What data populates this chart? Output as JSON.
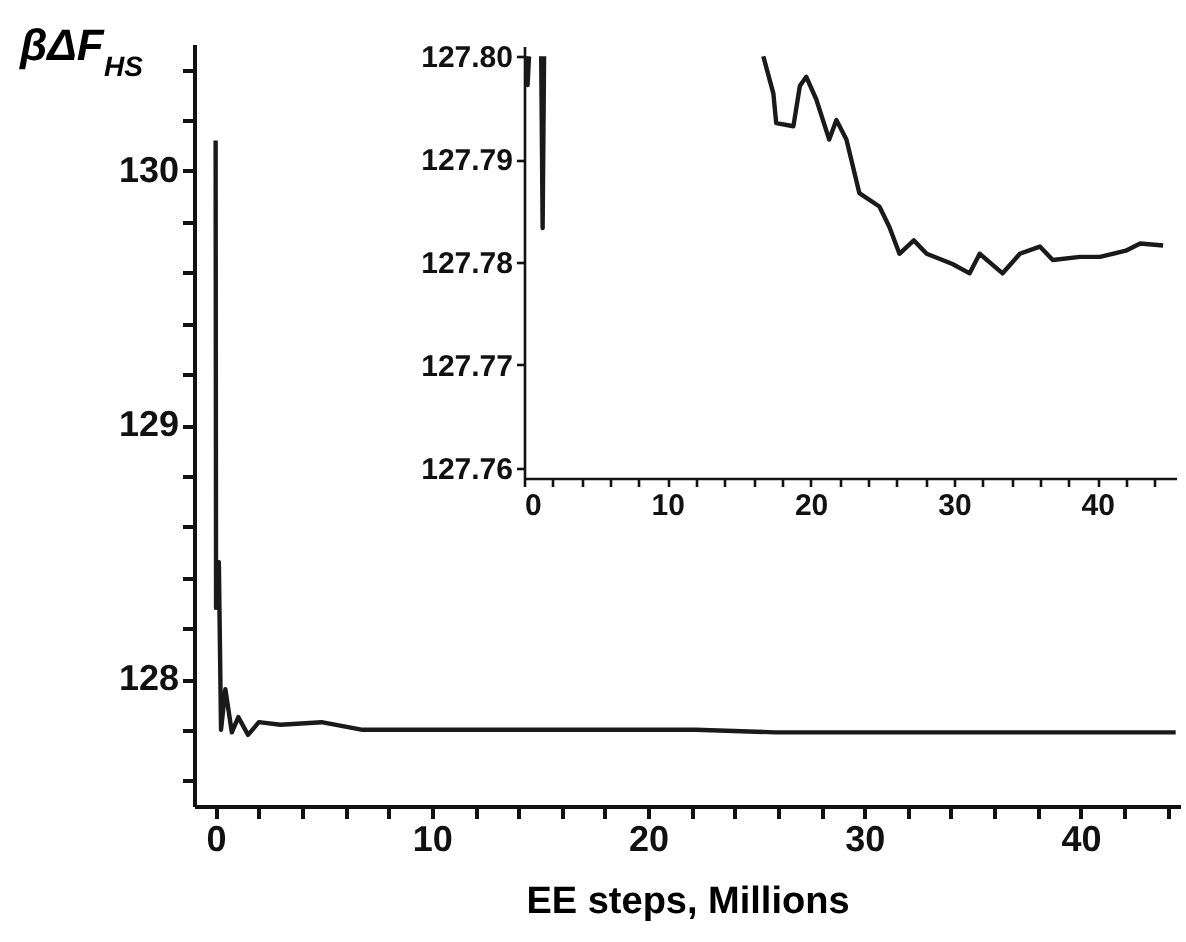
{
  "chart_data": [
    {
      "type": "line",
      "xlabel": "EE steps, Millions",
      "ylabel": "βΔF$_{HS}$",
      "xlim": [
        -1,
        44.6
      ],
      "ylim": [
        127.5,
        130.5
      ],
      "xticks": [
        0,
        {
          "value": 2,
          "label": null
        },
        {
          "value": 4,
          "label": null
        },
        {
          "value": 6,
          "label": null
        },
        {
          "value": 8,
          "label": null
        },
        10,
        {
          "value": 12,
          "label": null
        },
        {
          "value": 14,
          "label": null
        },
        {
          "value": 16,
          "label": null
        },
        {
          "value": 18,
          "label": null
        },
        20,
        {
          "value": 22,
          "label": null
        },
        {
          "value": 24,
          "label": null
        },
        {
          "value": 26,
          "label": null
        },
        {
          "value": 28,
          "label": null
        },
        30,
        {
          "value": 32,
          "label": null
        },
        {
          "value": 34,
          "label": null
        },
        {
          "value": 36,
          "label": null
        },
        {
          "value": 38,
          "label": null
        },
        40,
        {
          "value": 42,
          "label": null
        },
        {
          "value": 44,
          "label": null
        }
      ],
      "yticks": [
        {
          "value": 127.6,
          "label": null
        },
        {
          "value": 127.8,
          "label": null
        },
        128,
        {
          "value": 128.2,
          "label": null
        },
        {
          "value": 128.4,
          "label": null
        },
        {
          "value": 128.6,
          "label": null
        },
        {
          "value": 128.8,
          "label": null
        },
        129,
        {
          "value": 129.2,
          "label": null
        },
        {
          "value": 129.4,
          "label": null
        },
        {
          "value": 129.6,
          "label": null
        },
        {
          "value": 129.8,
          "label": null
        },
        130,
        {
          "value": 130.2,
          "label": null
        },
        {
          "value": 130.4,
          "label": null
        }
      ],
      "grid": false,
      "series": [
        {
          "color": "#1a1a1a",
          "x": [
            0,
            0.02,
            0.15,
            0.25,
            0.45,
            0.75,
            1.05,
            1.5,
            2.0,
            3.0,
            4.9,
            6.8,
            16.0,
            22.2,
            25.9,
            44.4
          ],
          "values": [
            130.12,
            128.28,
            128.46,
            127.8,
            127.96,
            127.79,
            127.85,
            127.78,
            127.83,
            127.82,
            127.83,
            127.8,
            127.8,
            127.8,
            127.79,
            127.79
          ]
        }
      ]
    },
    {
      "type": "line",
      "xlim": [
        0,
        45.5
      ],
      "ylim": [
        127.759,
        127.801
      ],
      "xticks": [
        0,
        {
          "value": 2,
          "label": null
        },
        {
          "value": 4,
          "label": null
        },
        {
          "value": 6,
          "label": null
        },
        {
          "value": 8,
          "label": null
        },
        10,
        {
          "value": 12,
          "label": null
        },
        {
          "value": 14,
          "label": null
        },
        {
          "value": 16,
          "label": null
        },
        {
          "value": 18,
          "label": null
        },
        20,
        {
          "value": 22,
          "label": null
        },
        {
          "value": 24,
          "label": null
        },
        {
          "value": 26,
          "label": null
        },
        {
          "value": 28,
          "label": null
        },
        30,
        {
          "value": 32,
          "label": null
        },
        {
          "value": 34,
          "label": null
        },
        {
          "value": 36,
          "label": null
        },
        {
          "value": 38,
          "label": null
        },
        40,
        {
          "value": 42,
          "label": null
        },
        {
          "value": 44,
          "label": null
        }
      ],
      "yticks": [
        127.76,
        127.77,
        127.78,
        127.79,
        {
          "value": 127.8,
          "label": "127.80"
        }
      ],
      "grid": false,
      "series": [
        {
          "color": "#1a1a1a",
          "x": [
            0.15,
            0.25,
            0.35,
            null,
            1.2,
            1.3,
            1.4,
            null,
            16.7,
            17.4,
            17.6,
            18.8,
            19.25,
            19.7,
            20.4,
            21.3,
            21.8,
            22.5,
            23.4,
            24.8,
            25.5,
            26.2,
            27.2,
            28.1,
            29.9,
            31.1,
            31.8,
            33.4,
            34.6,
            36.0,
            36.9,
            38.8,
            40.2,
            42.0,
            43.0,
            44.6
          ],
          "values": [
            127.8,
            127.7972,
            127.8,
            null,
            127.8,
            127.7833,
            127.8,
            null,
            127.8,
            127.7964,
            127.7935,
            127.7932,
            127.7971,
            127.798,
            127.7958,
            127.7919,
            127.7938,
            127.7919,
            127.7867,
            127.7854,
            127.7834,
            127.7808,
            127.7821,
            127.7808,
            127.7798,
            127.7789,
            127.7808,
            127.7789,
            127.7808,
            127.7815,
            127.7802,
            127.7805,
            127.7805,
            127.7811,
            127.7818,
            127.7816
          ]
        }
      ]
    }
  ]
}
